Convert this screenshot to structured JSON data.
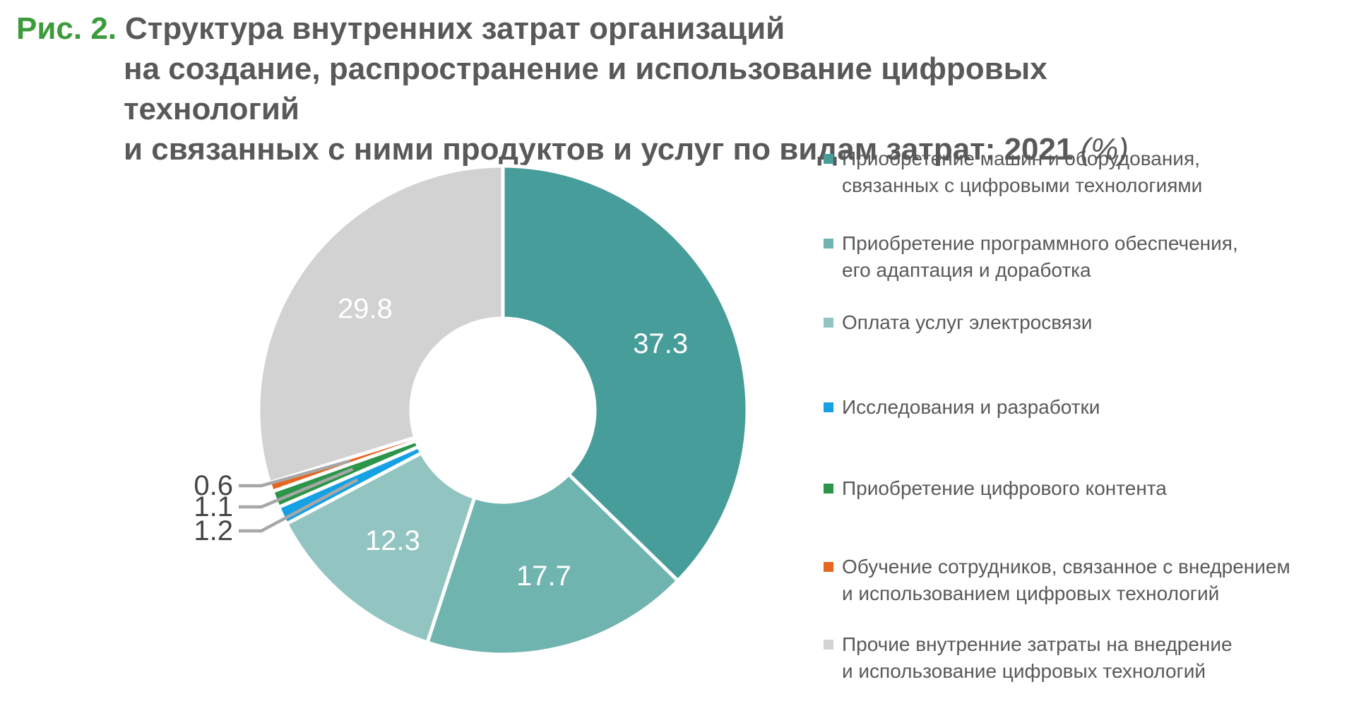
{
  "title": {
    "prefix": "Рис. 2.",
    "line1": "Структура внутренних затрат организаций",
    "line2": "на создание, распространение и использование цифровых технологий",
    "line3": "и связанных с ними продуктов и услуг по видам затрат: 2021",
    "line3_suffix": "(%)"
  },
  "colors": {
    "teal_dark": "#479D9A",
    "teal_medium": "#6FB4AF",
    "teal_light": "#92C5C1",
    "blue": "#16A1E4",
    "green": "#2C9549",
    "orange": "#E8641F",
    "gray_slice": "#D2D2D2",
    "leader_line": "#A7A7A7",
    "title_text": "#595959",
    "title_prefix": "#3C9B3B",
    "legend_text": "#595959",
    "callout_text": "#454545",
    "slice_separator": "#FFFFFF"
  },
  "chart_data": {
    "type": "pie",
    "donut": true,
    "title": "Структура внутренних затрат организаций на создание, распространение и использование цифровых технологий и связанных с ними продуктов и услуг по видам затрат: 2021 (%)",
    "unit": "%",
    "start_angle_deg": 0,
    "direction": "clockwise",
    "legend_position": "right",
    "slices": [
      {
        "category": "Приобретение машин и оборудования, связанных с цифровыми технологиями",
        "value": 37.3,
        "display": "37.3",
        "color": "#479D9A",
        "label": "inside"
      },
      {
        "category": "Приобретение программного обеспечения, его адаптация и доработка",
        "value": 17.7,
        "display": "17.7",
        "color": "#6FB4AF",
        "label": "inside"
      },
      {
        "category": "Оплата услуг электросвязи",
        "value": 12.3,
        "display": "12.3",
        "color": "#92C5C1",
        "label": "inside"
      },
      {
        "category": "Исследования и разработки",
        "value": 1.2,
        "display": "1.2",
        "color": "#16A1E4",
        "label": "callout"
      },
      {
        "category": "Приобретение цифрового контента",
        "value": 1.1,
        "display": "1.1",
        "color": "#2C9549",
        "label": "callout"
      },
      {
        "category": "Обучение сотрудников, связанное с внедрением и использованием цифровых технологий",
        "value": 0.6,
        "display": "0.6",
        "color": "#E8641F",
        "label": "callout"
      },
      {
        "category": "Прочие внутренние затраты на внедрение и использование цифровых технологий",
        "value": 29.8,
        "display": "29.8",
        "color": "#D2D2D2",
        "label": "inside"
      }
    ]
  },
  "legend": {
    "items": [
      {
        "lines": [
          "Приобретение машин и оборудования,",
          "связанных с цифровыми технологиями"
        ],
        "color": "#479D9A"
      },
      {
        "lines": [
          "Приобретение программного обеспечения,",
          "его адаптация и доработка"
        ],
        "color": "#6FB4AF"
      },
      {
        "lines": [
          "Оплата услуг электросвязи"
        ],
        "color": "#92C5C1"
      },
      {
        "lines": [
          "Исследования и разработки"
        ],
        "color": "#16A1E4"
      },
      {
        "lines": [
          "Приобретение цифрового контента"
        ],
        "color": "#2C9549"
      },
      {
        "lines": [
          "Обучение сотрудников, связанное с внедрением",
          "и использованием цифровых технологий"
        ],
        "color": "#E8641F"
      },
      {
        "lines": [
          "Прочие внутренние затраты на внедрение",
          "и использование цифровых технологий"
        ],
        "color": "#D2D2D2"
      }
    ]
  }
}
